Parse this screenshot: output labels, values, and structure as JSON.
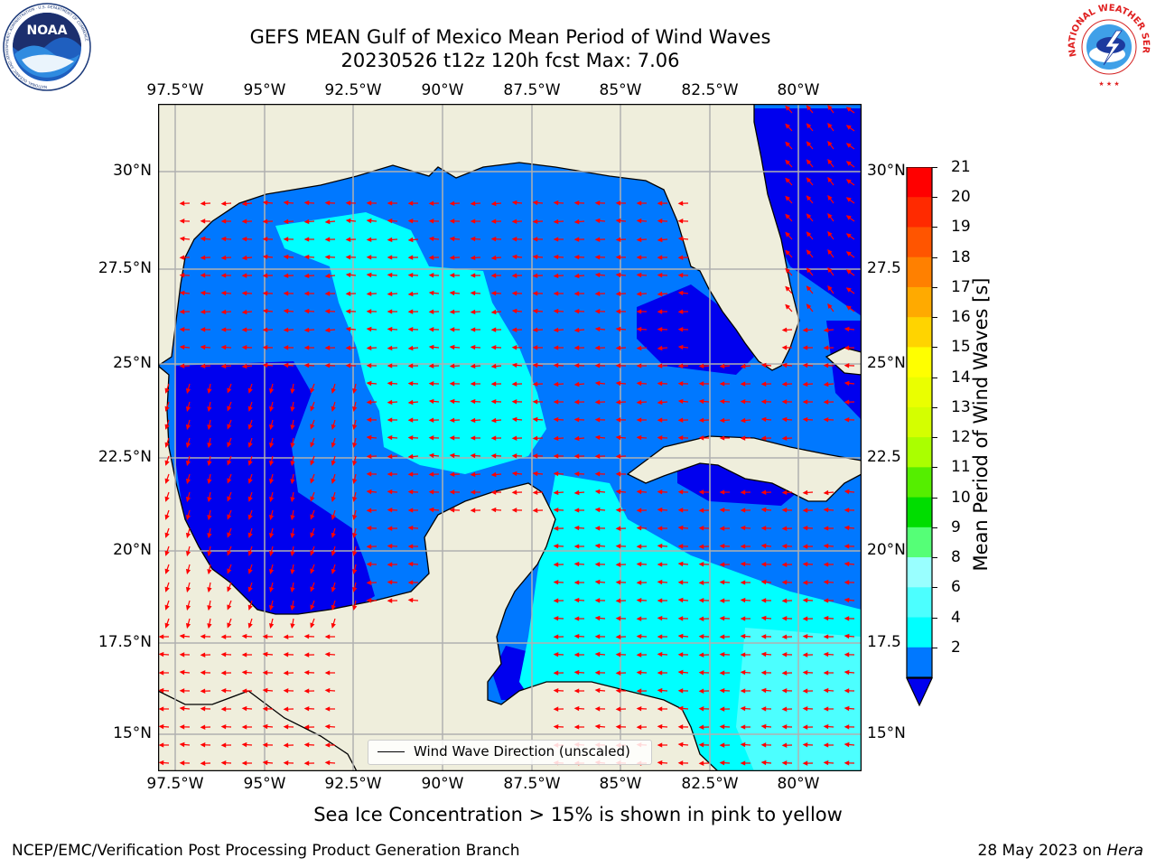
{
  "header": {
    "title_line1": "GEFS MEAN Gulf of Mexico Mean Period of Wind Waves",
    "title_line2": "20230526 t12z 120h fcst   Max: 7.06"
  },
  "logos": {
    "noaa_text": "NOAA",
    "noaa_ring": "NATIONAL OCEANIC AND ATMOSPHERIC ADMINISTRATION · U.S. DEPARTMENT OF COMMERCE",
    "nws_ring": "NATIONAL WEATHER SERVICE"
  },
  "map": {
    "lon_labels": [
      "97.5°W",
      "95°W",
      "92.5°W",
      "90°W",
      "87.5°W",
      "85°W",
      "82.5°W",
      "80°W"
    ],
    "lat_labels_left": [
      "30°N",
      "27.5°N",
      "25°N",
      "22.5°N",
      "20°N",
      "17.5°N",
      "15°N"
    ],
    "lat_labels_right": [
      "30°N",
      "27.5",
      "25°N",
      "22.5",
      "20°N",
      "17.5",
      "15°N"
    ],
    "legend_label": "Wind Wave Direction (unscaled)",
    "colors": {
      "land": "#efeedc",
      "ocean_dark": "#0000ee",
      "ocean_mid": "#0078ff",
      "ocean_light": "#00ffff",
      "ocean_pale": "#4cffff",
      "arrow": "#ff0000",
      "grid": "#b0b0b0"
    }
  },
  "colorbar": {
    "title": "Mean Period of Wind Waves [s]",
    "labels": [
      "21",
      "20",
      "19",
      "18",
      "17",
      "16",
      "15",
      "14",
      "13",
      "12",
      "11",
      "10",
      "9",
      "8",
      "6",
      "4",
      "2"
    ],
    "colors": [
      "#ff0000",
      "#ff2a00",
      "#ff5500",
      "#ff8000",
      "#ffaa00",
      "#ffd400",
      "#ffff00",
      "#eaff00",
      "#d4ff00",
      "#aaff00",
      "#55ee00",
      "#00dd00",
      "#55ff77",
      "#99ffff",
      "#4cffff",
      "#00ffff",
      "#0078ff"
    ],
    "extend_color": "#0000ee"
  },
  "footer": {
    "ice_note": "Sea Ice Concentration > 15% is shown in pink to yellow",
    "credit": "NCEP/EMC/Verification Post Processing Product Generation Branch",
    "date_prefix": "28 May 2023 on ",
    "machine": "Hera"
  }
}
